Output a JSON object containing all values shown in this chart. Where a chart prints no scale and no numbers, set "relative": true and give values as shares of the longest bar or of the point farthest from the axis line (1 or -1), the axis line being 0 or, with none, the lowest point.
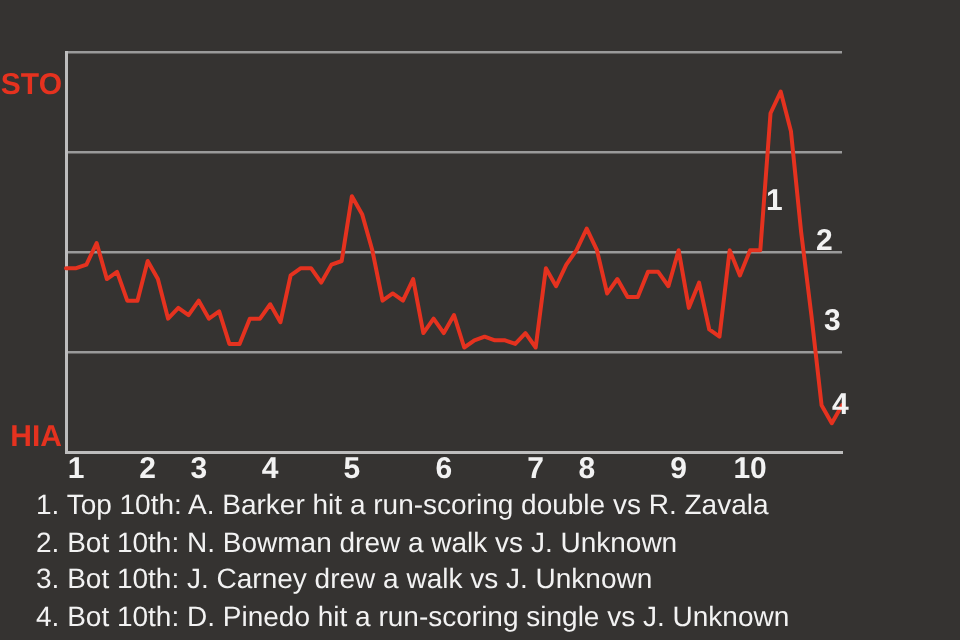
{
  "chart_data": {
    "type": "line",
    "relative": true,
    "categories": [
      null,
      "1",
      null,
      null,
      null,
      null,
      null,
      null,
      "2",
      null,
      null,
      null,
      null,
      "3",
      null,
      null,
      null,
      null,
      null,
      null,
      "4",
      null,
      null,
      null,
      null,
      null,
      null,
      null,
      "5",
      null,
      null,
      null,
      null,
      null,
      null,
      null,
      null,
      "6",
      null,
      null,
      null,
      null,
      null,
      null,
      null,
      null,
      "7",
      null,
      null,
      null,
      null,
      "8",
      null,
      null,
      null,
      null,
      null,
      null,
      null,
      null,
      "9",
      null,
      null,
      null,
      null,
      null,
      null,
      "10",
      null,
      null,
      null,
      null,
      null,
      null,
      null,
      null,
      null
    ],
    "series": [
      {
        "color": "#e5321f",
        "values": [
          0.51,
          0.51,
          0.52,
          0.58,
          0.48,
          0.5,
          0.42,
          0.42,
          0.53,
          0.48,
          0.37,
          0.4,
          0.38,
          0.42,
          0.37,
          0.39,
          0.3,
          0.3,
          0.37,
          0.37,
          0.41,
          0.36,
          0.49,
          0.51,
          0.51,
          0.47,
          0.52,
          0.53,
          0.71,
          0.66,
          0.56,
          0.42,
          0.44,
          0.42,
          0.48,
          0.33,
          0.37,
          0.33,
          0.38,
          0.29,
          0.31,
          0.32,
          0.31,
          0.31,
          0.3,
          0.33,
          0.29,
          0.51,
          0.46,
          0.52,
          0.56,
          0.62,
          0.56,
          0.44,
          0.48,
          0.43,
          0.43,
          0.5,
          0.5,
          0.46,
          0.56,
          0.4,
          0.47,
          0.34,
          0.32,
          0.56,
          0.49,
          0.56,
          0.56,
          0.94,
          1,
          0.89,
          0.61,
          0.38,
          0.13,
          0.08,
          0.13
        ]
      }
    ],
    "grid": "y",
    "marker": "none",
    "line_style": "solid",
    "annotations": [
      "STO",
      "HIA",
      "1",
      "2",
      "3",
      "4",
      "1. Top 10th: A. Barker hit a run-scoring double vs R. Zavala",
      "2. Bot 10th: N. Bowman drew a walk vs J. Unknown",
      "3. Bot 10th: J. Carney drew a walk vs J. Unknown",
      "4. Bot 10th: D. Pinedo hit a run-scoring single vs J. Unknown"
    ]
  }
}
